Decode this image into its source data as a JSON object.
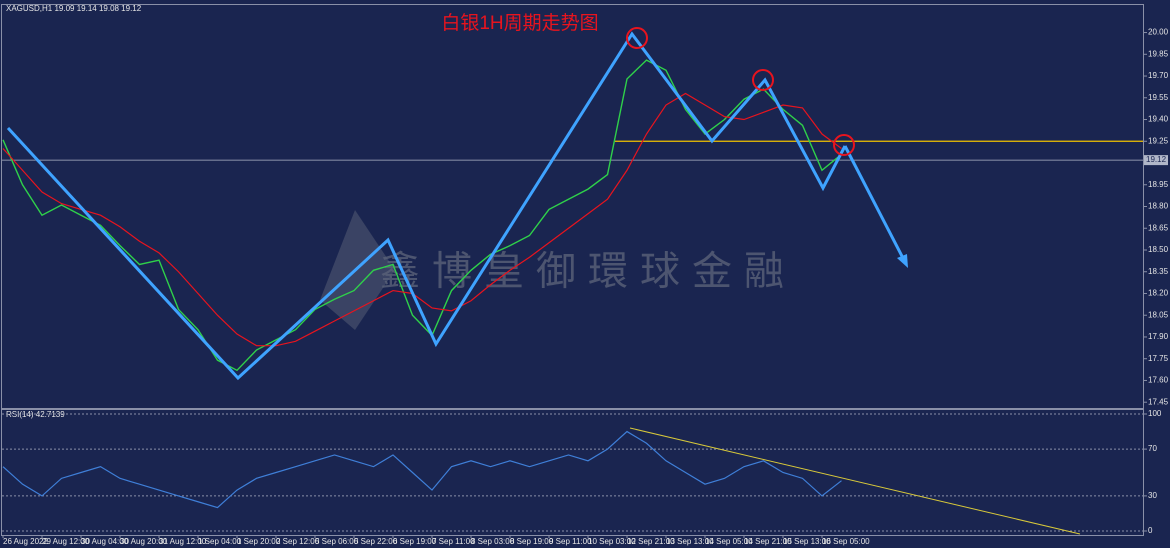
{
  "chart_data": [
    {
      "type": "line",
      "title": "白银1H周期走势图",
      "header": "XAGUSD,H1 19.09 19.14 19.08 19.12",
      "watermark": "鑫博皇御環球金融",
      "current_price": 19.12,
      "levels": [
        19.25
      ],
      "categories": [
        "26 Aug 2022",
        null,
        "29 Aug 12:00",
        null,
        "30 Aug 04:00",
        null,
        "30 Aug 20:00",
        null,
        "31 Aug 12:00",
        null,
        "1 Sep 04:00",
        null,
        "1 Sep 20:00",
        null,
        "2 Sep 12:00",
        null,
        "5 Sep 06:00",
        null,
        "5 Sep 22:00",
        null,
        "6 Sep 19:00",
        null,
        "7 Sep 11:00",
        null,
        "8 Sep 03:00",
        null,
        "8 Sep 19:00",
        null,
        "9 Sep 11:00",
        null,
        "10 Sep 03:00",
        null,
        "12 Sep 21:00",
        null,
        "13 Sep 13:00",
        null,
        "14 Sep 05:00",
        null,
        "14 Sep 21:00",
        null,
        "15 Sep 13:00",
        null,
        "16 Sep 05:00",
        null
      ],
      "series": [
        {
          "color": "#2fd14a",
          "values": [
            19.26,
            18.95,
            18.74,
            18.81,
            18.74,
            18.67,
            18.53,
            18.4,
            18.43,
            18.09,
            17.95,
            17.74,
            17.67,
            17.81,
            17.88,
            17.95,
            18.09,
            18.16,
            18.22,
            18.36,
            18.4,
            18.05,
            17.91,
            18.22,
            18.36,
            18.47,
            18.53,
            18.6,
            18.78,
            18.85,
            18.92,
            19.02,
            19.68,
            19.81,
            19.74,
            19.47,
            19.3,
            19.4,
            19.54,
            19.61,
            19.47,
            19.36,
            19.05,
            19.16
          ]
        },
        {
          "color": "#e8141e",
          "values": [
            19.2,
            19.05,
            18.9,
            18.82,
            18.78,
            18.74,
            18.66,
            18.56,
            18.48,
            18.35,
            18.2,
            18.05,
            17.92,
            17.84,
            17.84,
            17.87,
            17.94,
            18.01,
            18.08,
            18.15,
            18.22,
            18.2,
            18.1,
            18.08,
            18.15,
            18.26,
            18.36,
            18.45,
            18.55,
            18.65,
            18.75,
            18.85,
            19.05,
            19.3,
            19.5,
            19.58,
            19.5,
            19.42,
            19.4,
            19.45,
            19.5,
            19.48,
            19.3,
            19.2
          ]
        }
      ],
      "ylim": [
        17.41,
        20.19
      ],
      "yticks": [
        {
          "value": 17.45,
          "label": "17.45"
        },
        {
          "value": 17.6,
          "label": "17.60"
        },
        {
          "value": 17.75,
          "label": "17.75"
        },
        {
          "value": 17.9,
          "label": "17.90"
        },
        {
          "value": 18.05,
          "label": "18.05"
        },
        {
          "value": 18.2,
          "label": "18.20"
        },
        {
          "value": 18.35,
          "label": "18.35"
        },
        {
          "value": 18.5,
          "label": "18.50"
        },
        {
          "value": 18.65,
          "label": "18.65"
        },
        {
          "value": 18.8,
          "label": "18.80"
        },
        {
          "value": 18.95,
          "label": "18.95"
        },
        {
          "value": 19.1,
          "label": "19.10"
        },
        {
          "value": 19.25,
          "label": "19.25"
        },
        {
          "value": 19.4,
          "label": "19.40"
        },
        {
          "value": 19.55,
          "label": "19.55"
        },
        {
          "value": 19.7,
          "label": "19.70"
        },
        {
          "value": 19.85,
          "label": "19.85"
        },
        {
          "value": 20.0,
          "label": "20.00"
        }
      ],
      "grid": false
    },
    {
      "type": "line",
      "header": "RSI(14) 42.7139",
      "series": [
        {
          "color": "#3f7fd8",
          "values": [
            55,
            40,
            30,
            45,
            50,
            55,
            45,
            40,
            35,
            30,
            25,
            20,
            35,
            45,
            50,
            55,
            60,
            65,
            60,
            55,
            65,
            50,
            35,
            55,
            60,
            55,
            60,
            55,
            60,
            65,
            60,
            70,
            85,
            75,
            60,
            50,
            40,
            45,
            55,
            60,
            50,
            45,
            30,
            43
          ]
        }
      ],
      "ylim": [
        0,
        100
      ],
      "yticks": [
        0,
        30,
        70,
        100
      ],
      "grid": true
    }
  ]
}
